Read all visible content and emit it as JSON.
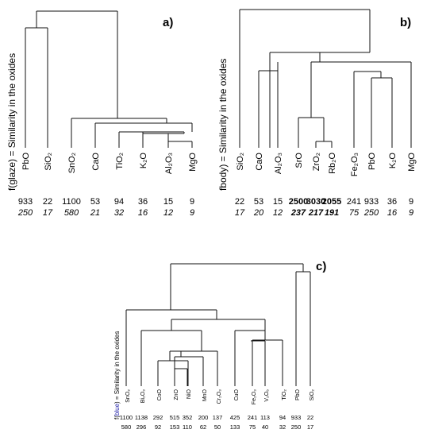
{
  "panels": [
    {
      "id": "a",
      "tag": "a)",
      "ylabel": "f(glaze) = Similarity in the oxides",
      "labels": [
        "PbO",
        "SiO₂",
        "SnO₂",
        "CaO",
        "TiO₂",
        "K₂O",
        "Al₂O₃",
        "MgO"
      ],
      "values1": [
        "933",
        "22",
        "1100",
        "53",
        "94",
        "36",
        "15",
        "9"
      ],
      "values2": [
        "250",
        "17",
        "580",
        "21",
        "32",
        "16",
        "12",
        "9"
      ]
    },
    {
      "id": "b",
      "tag": "b)",
      "ylabel": "fbody) = Similarity in the oxides",
      "labels": [
        "SiO₂",
        "CaO",
        "Al₂O₃",
        "SrO",
        "ZrO₂",
        "Rb₂O",
        "Fe₂O₃",
        "PbO",
        "K₂O",
        "MgO"
      ],
      "values1": [
        "22",
        "53",
        "15",
        "2500",
        "3030",
        "2055",
        "241",
        "933",
        "36",
        "9"
      ],
      "values2": [
        "17",
        "20",
        "12",
        "237",
        "217",
        "191",
        "75",
        "250",
        "16",
        "9"
      ]
    },
    {
      "id": "c",
      "tag": "c)",
      "ylabel_pre": "f(",
      "ylabel_word": "blue",
      "ylabel_post": ") = Similarity in the oxides",
      "labels": [
        "SnO₂",
        "Bi₂O₃",
        "CoO",
        "ZnO",
        "NiO",
        "MnO",
        "Cr₂O₃",
        "CuO",
        "Fe₂O₃",
        "V₂O₅",
        "TiO₂",
        "PbO",
        "SiO₂"
      ],
      "values1": [
        "1100",
        "1138",
        "292",
        "515",
        "352",
        "200",
        "137",
        "425",
        "241",
        "113",
        "94",
        "933",
        "22"
      ],
      "values2": [
        "580",
        "296",
        "92",
        "153",
        "110",
        "62",
        "50",
        "133",
        "75",
        "40",
        "32",
        "250",
        "17"
      ]
    }
  ],
  "colors": {
    "ink": "#111111",
    "highlight": "#1a1aa6"
  }
}
